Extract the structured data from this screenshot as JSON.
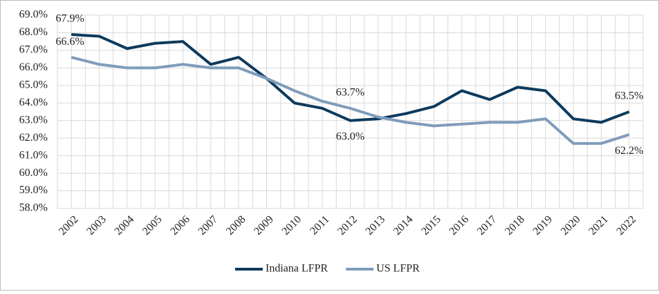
{
  "chart_data": {
    "type": "line",
    "categories": [
      "2002",
      "2003",
      "2004",
      "2005",
      "2006",
      "2007",
      "2008",
      "2009",
      "2010",
      "2011",
      "2012",
      "2013",
      "2014",
      "2015",
      "2016",
      "2017",
      "2018",
      "2019",
      "2020",
      "2021",
      "2022"
    ],
    "series": [
      {
        "name": "Indiana LFPR",
        "color": "#0d3a5c",
        "values": [
          67.9,
          67.8,
          67.1,
          67.4,
          67.5,
          66.2,
          66.6,
          65.4,
          64.0,
          63.7,
          63.0,
          63.1,
          63.4,
          63.8,
          64.7,
          64.2,
          64.9,
          64.7,
          63.1,
          62.9,
          63.5
        ],
        "value_labels": [
          "67.9%",
          null,
          null,
          null,
          null,
          null,
          null,
          null,
          null,
          null,
          "63.0%",
          null,
          null,
          null,
          null,
          null,
          null,
          null,
          null,
          null,
          "63.5%"
        ]
      },
      {
        "name": "US LFPR",
        "color": "#7f9cba",
        "values": [
          66.6,
          66.2,
          66.0,
          66.0,
          66.2,
          66.0,
          66.0,
          65.4,
          64.7,
          64.1,
          63.7,
          63.2,
          62.9,
          62.7,
          62.8,
          62.9,
          62.9,
          63.1,
          61.7,
          61.7,
          62.2
        ],
        "value_labels": [
          "66.6%",
          null,
          null,
          null,
          null,
          null,
          null,
          null,
          null,
          null,
          "63.7%",
          null,
          null,
          null,
          null,
          null,
          null,
          null,
          null,
          null,
          "62.2%"
        ]
      }
    ],
    "ylim": [
      58,
      69
    ],
    "yticks": [
      {
        "value": 58,
        "label": "58.0%"
      },
      {
        "value": 59,
        "label": "59.0%"
      },
      {
        "value": 60,
        "label": "60.0%"
      },
      {
        "value": 61,
        "label": "61.0%"
      },
      {
        "value": 62,
        "label": "62.0%"
      },
      {
        "value": 63,
        "label": "63.0%"
      },
      {
        "value": 64,
        "label": "64.0%"
      },
      {
        "value": 65,
        "label": "65.0%"
      },
      {
        "value": 66,
        "label": "66.0%"
      },
      {
        "value": 67,
        "label": "67.0%"
      },
      {
        "value": 68,
        "label": "68.0%"
      },
      {
        "value": 69,
        "label": "69.0%"
      }
    ],
    "grid": true,
    "legend": "bottom"
  }
}
